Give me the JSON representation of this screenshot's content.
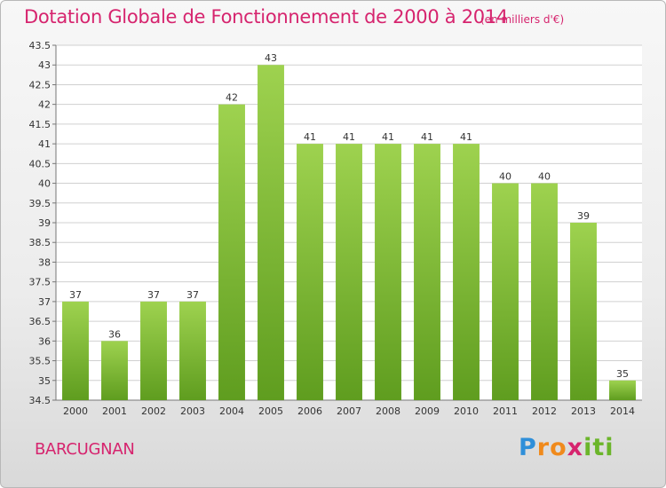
{
  "chart_data": {
    "type": "bar",
    "title": "Dotation Globale de Fonctionnement de 2000 à 2014",
    "subtitle": "(en milliers d'€)",
    "categories": [
      "2000",
      "2001",
      "2002",
      "2003",
      "2004",
      "2005",
      "2006",
      "2007",
      "2008",
      "2009",
      "2010",
      "2011",
      "2012",
      "2013",
      "2014"
    ],
    "values": [
      37,
      36,
      37,
      37,
      42,
      43,
      41,
      41,
      41,
      41,
      41,
      40,
      40,
      39,
      35
    ],
    "ylim": [
      34.5,
      43.5
    ],
    "yticks": [
      "34.5",
      "35",
      "35.5",
      "36",
      "36.5",
      "37",
      "37.5",
      "38",
      "38.5",
      "39",
      "39.5",
      "40",
      "40.5",
      "41",
      "41.5",
      "42",
      "42.5",
      "43",
      "43.5"
    ],
    "xlabel": "",
    "ylabel": "",
    "grid": true,
    "bar_color_top": "#9ed24f",
    "bar_color_bottom": "#5f9d1f",
    "legend": "none"
  },
  "footer": {
    "commune": "BARCUGNAN",
    "logo_parts": [
      "P",
      "ro",
      "x",
      "iti"
    ]
  },
  "colors": {
    "title": "#d6246e",
    "grid": "#d0d0d0"
  }
}
